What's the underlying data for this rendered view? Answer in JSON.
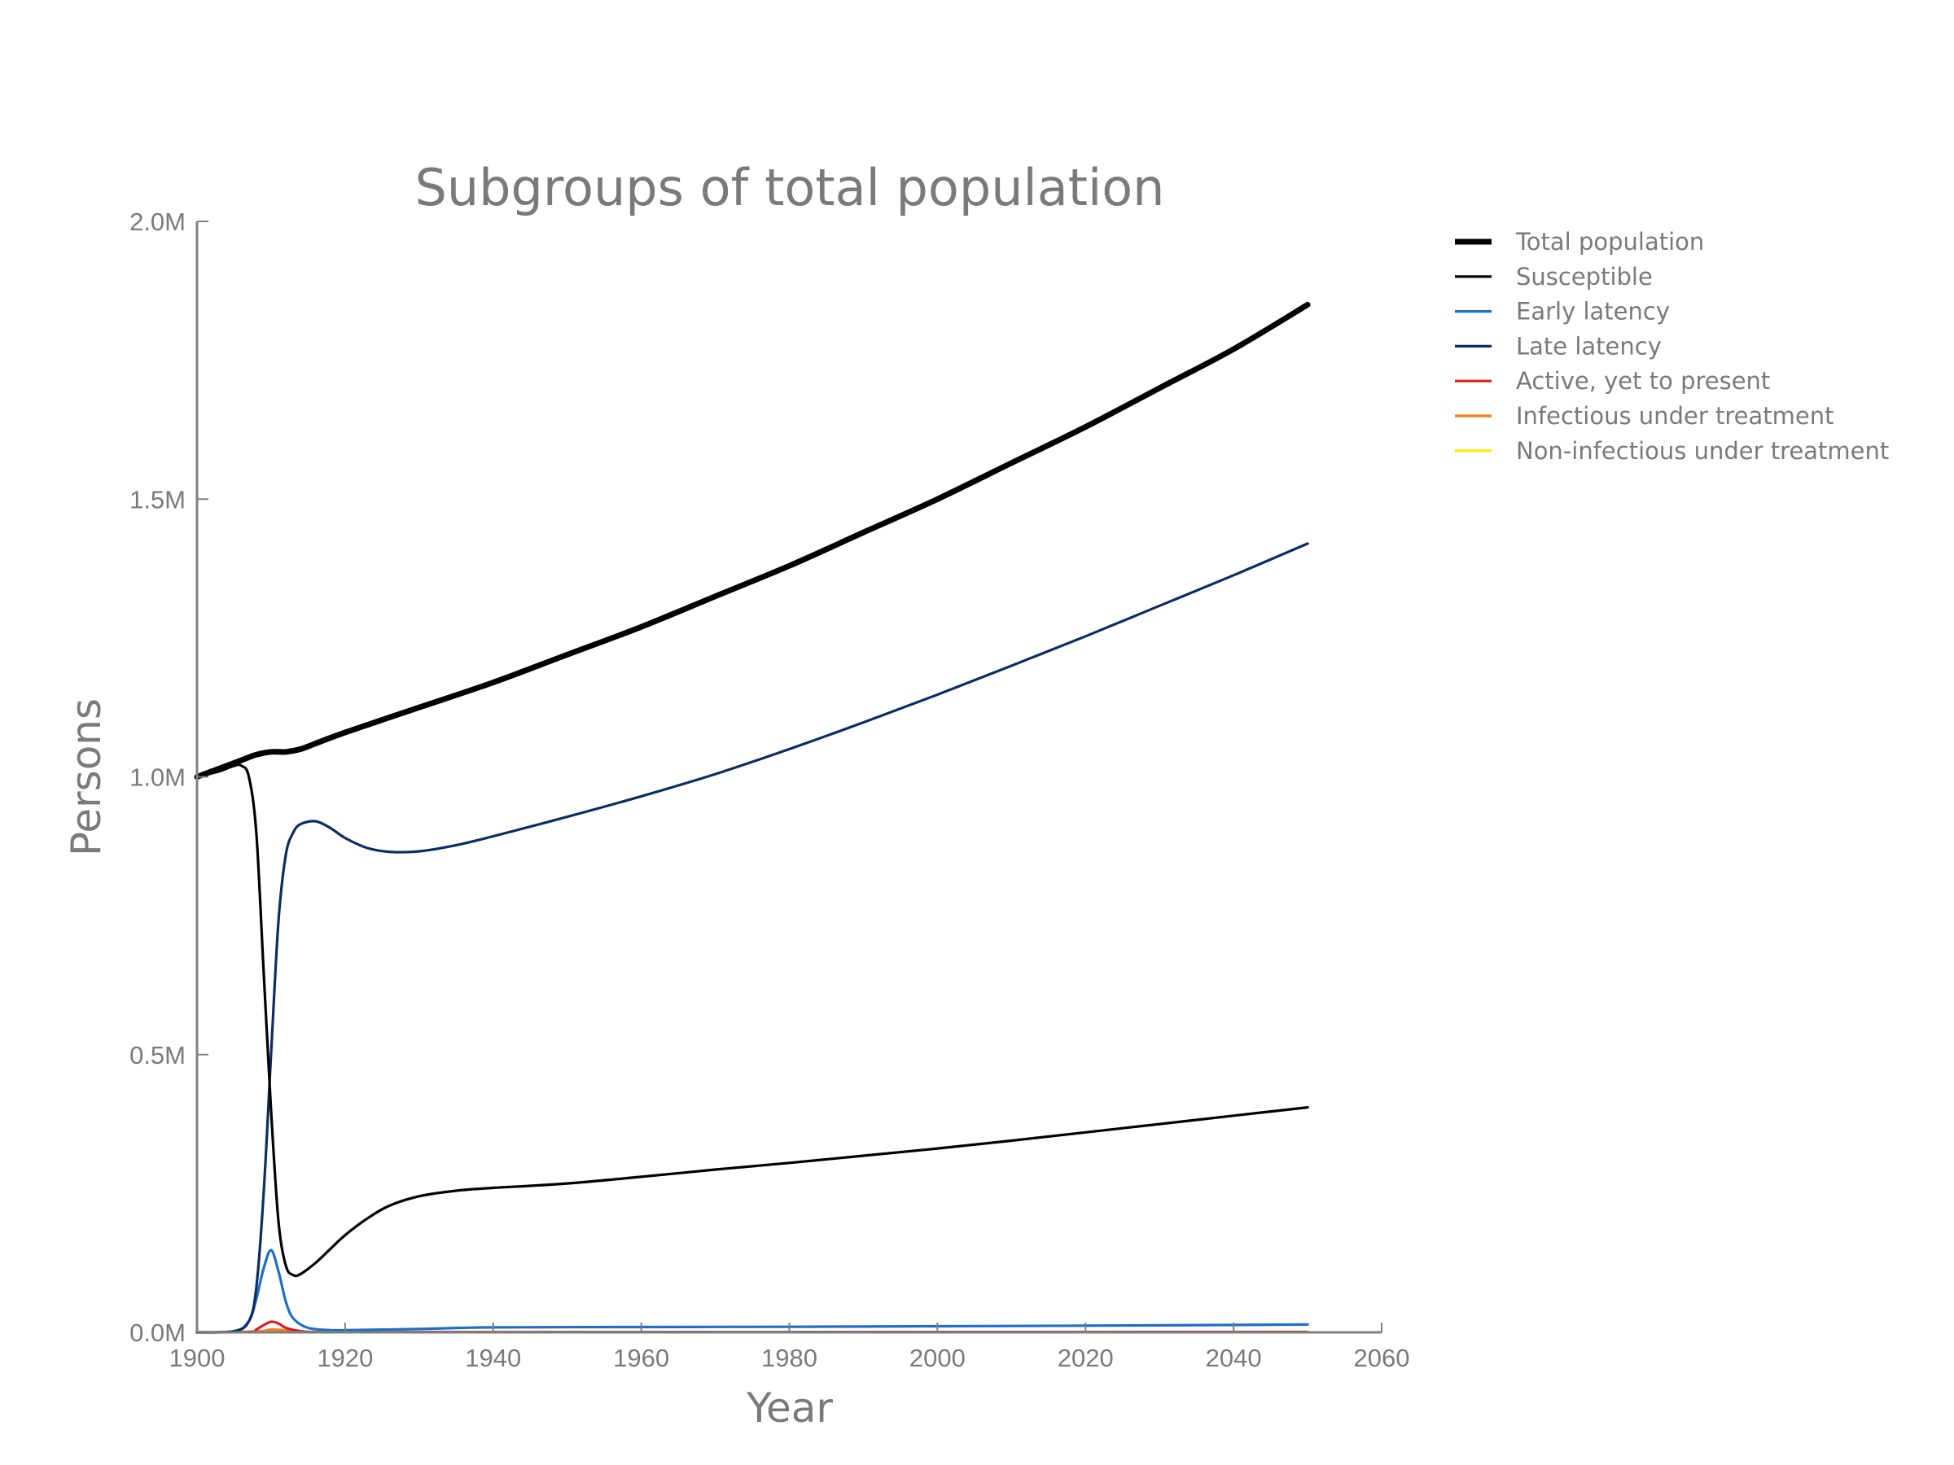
{
  "chart_data": {
    "type": "line",
    "title": "Subgroups of total population",
    "xlabel": "Year",
    "ylabel": "Persons",
    "xlim": [
      1900,
      2060
    ],
    "ylim": [
      0,
      2000000
    ],
    "xticks": [
      1900,
      1920,
      1940,
      1960,
      1980,
      2000,
      2020,
      2040,
      2060
    ],
    "xtick_labels": [
      "1900",
      "1920",
      "1940",
      "1960",
      "1980",
      "2000",
      "2020",
      "2040",
      "2060"
    ],
    "yticks": [
      0,
      500000,
      1000000,
      1500000,
      2000000
    ],
    "ytick_labels": [
      "0.0M",
      "0.5M",
      "1.0M",
      "1.5M",
      "2.0M"
    ],
    "grid": false,
    "legend_position": "outside-right",
    "series": [
      {
        "name": "Total population",
        "color": "#000000",
        "width": "thick",
        "points": [
          [
            1900,
            1000000
          ],
          [
            1902,
            1010000
          ],
          [
            1904,
            1020000
          ],
          [
            1906,
            1030000
          ],
          [
            1908,
            1040000
          ],
          [
            1910,
            1045000
          ],
          [
            1912,
            1045000
          ],
          [
            1914,
            1050000
          ],
          [
            1916,
            1060000
          ],
          [
            1920,
            1080000
          ],
          [
            1930,
            1125000
          ],
          [
            1940,
            1170000
          ],
          [
            1950,
            1220000
          ],
          [
            1960,
            1270000
          ],
          [
            1970,
            1325000
          ],
          [
            1980,
            1380000
          ],
          [
            1990,
            1440000
          ],
          [
            2000,
            1500000
          ],
          [
            2010,
            1565000
          ],
          [
            2020,
            1630000
          ],
          [
            2030,
            1700000
          ],
          [
            2040,
            1770000
          ],
          [
            2050,
            1850000
          ]
        ]
      },
      {
        "name": "Susceptible",
        "color": "#000000",
        "width": "normal",
        "points": [
          [
            1900,
            1000000
          ],
          [
            1903,
            1010000
          ],
          [
            1905,
            1020000
          ],
          [
            1906,
            1020000
          ],
          [
            1907,
            1000000
          ],
          [
            1908,
            900000
          ],
          [
            1909,
            650000
          ],
          [
            1910,
            400000
          ],
          [
            1911,
            200000
          ],
          [
            1912,
            120000
          ],
          [
            1913,
            103000
          ],
          [
            1914,
            105000
          ],
          [
            1916,
            125000
          ],
          [
            1918,
            150000
          ],
          [
            1920,
            175000
          ],
          [
            1923,
            205000
          ],
          [
            1926,
            228000
          ],
          [
            1930,
            245000
          ],
          [
            1935,
            255000
          ],
          [
            1940,
            260000
          ],
          [
            1950,
            268000
          ],
          [
            1960,
            280000
          ],
          [
            1970,
            293000
          ],
          [
            1980,
            305000
          ],
          [
            1990,
            318000
          ],
          [
            2000,
            331000
          ],
          [
            2010,
            345000
          ],
          [
            2020,
            360000
          ],
          [
            2030,
            375000
          ],
          [
            2040,
            390000
          ],
          [
            2050,
            405000
          ]
        ]
      },
      {
        "name": "Early latency",
        "color": "#1f6fc8",
        "width": "normal",
        "points": [
          [
            1900,
            0
          ],
          [
            1905,
            2000
          ],
          [
            1907,
            20000
          ],
          [
            1908,
            60000
          ],
          [
            1909,
            115000
          ],
          [
            1910,
            148000
          ],
          [
            1911,
            110000
          ],
          [
            1912,
            55000
          ],
          [
            1913,
            25000
          ],
          [
            1915,
            8000
          ],
          [
            1918,
            4000
          ],
          [
            1920,
            4000
          ],
          [
            1930,
            6000
          ],
          [
            1940,
            9000
          ],
          [
            1960,
            9500
          ],
          [
            1980,
            10000
          ],
          [
            2000,
            11000
          ],
          [
            2020,
            12000
          ],
          [
            2050,
            14000
          ]
        ]
      },
      {
        "name": "Late latency",
        "color": "#0c2d5e",
        "width": "normal",
        "points": [
          [
            1900,
            0
          ],
          [
            1905,
            2000
          ],
          [
            1907,
            20000
          ],
          [
            1908,
            80000
          ],
          [
            1909,
            250000
          ],
          [
            1910,
            500000
          ],
          [
            1911,
            740000
          ],
          [
            1912,
            860000
          ],
          [
            1913,
            900000
          ],
          [
            1914,
            915000
          ],
          [
            1916,
            920000
          ],
          [
            1918,
            908000
          ],
          [
            1920,
            890000
          ],
          [
            1923,
            872000
          ],
          [
            1926,
            865000
          ],
          [
            1930,
            866000
          ],
          [
            1935,
            877000
          ],
          [
            1940,
            893000
          ],
          [
            1950,
            928000
          ],
          [
            1960,
            965000
          ],
          [
            1970,
            1005000
          ],
          [
            1980,
            1050000
          ],
          [
            1990,
            1098000
          ],
          [
            2000,
            1148000
          ],
          [
            2010,
            1200000
          ],
          [
            2020,
            1253000
          ],
          [
            2030,
            1308000
          ],
          [
            2040,
            1363000
          ],
          [
            2050,
            1420000
          ]
        ]
      },
      {
        "name": "Active, yet to present",
        "color": "#d62020",
        "width": "normal",
        "points": [
          [
            1900,
            0
          ],
          [
            1907,
            500
          ],
          [
            1908,
            5000
          ],
          [
            1909,
            13000
          ],
          [
            1910,
            19000
          ],
          [
            1911,
            16000
          ],
          [
            1912,
            8000
          ],
          [
            1914,
            2000
          ],
          [
            1916,
            500
          ],
          [
            1920,
            300
          ],
          [
            1950,
            400
          ],
          [
            2050,
            600
          ]
        ]
      },
      {
        "name": "Infectious under treatment",
        "color": "#f07f1a",
        "width": "normal",
        "points": [
          [
            1900,
            0
          ],
          [
            1908,
            1500
          ],
          [
            1910,
            5000
          ],
          [
            1912,
            3500
          ],
          [
            1914,
            1000
          ],
          [
            1920,
            400
          ],
          [
            2050,
            800
          ]
        ]
      },
      {
        "name": "Non-infectious under treatment",
        "color": "#ffea00",
        "width": "normal",
        "points": [
          [
            1900,
            0
          ],
          [
            1908,
            1000
          ],
          [
            1910,
            3000
          ],
          [
            1912,
            2000
          ],
          [
            1915,
            500
          ],
          [
            1920,
            300
          ],
          [
            2050,
            500
          ]
        ]
      }
    ]
  }
}
